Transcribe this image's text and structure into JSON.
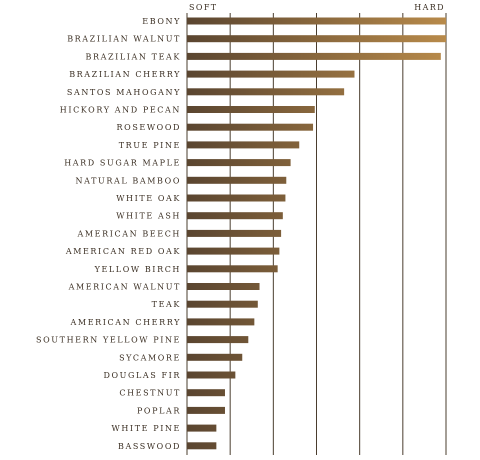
{
  "chart_data": {
    "type": "bar",
    "orientation": "horizontal",
    "title": "",
    "xlabel": "",
    "ylabel": "",
    "scale_labels": {
      "left": "SOFT",
      "right": "HARD"
    },
    "xlim": [
      0,
      3000
    ],
    "grid": true,
    "grid_values": [
      500,
      1000,
      1500,
      2000,
      2500
    ],
    "colors": {
      "bar_start": "#5a4530",
      "bar_end": "#b88a4a",
      "text": "#3a2e22",
      "grid": "#4a3d2e"
    },
    "categories": [
      "EBONY",
      "BRAZILIAN WALNUT",
      "BRAZILIAN TEAK",
      "BRAZILIAN CHERRY",
      "SANTOS MAHOGANY",
      "HICKORY AND PECAN",
      "ROSEWOOD",
      "TRUE PINE",
      "HARD SUGAR MAPLE",
      "NATURAL BAMBOO",
      "WHITE OAK",
      "WHITE ASH",
      "AMERICAN BEECH",
      "AMERICAN RED OAK",
      "YELLOW BIRCH",
      "AMERICAN WALNUT",
      "TEAK",
      "AMERICAN CHERRY",
      "SOUTHERN YELLOW PINE",
      "SYCAMORE",
      "DOUGLAS FIR",
      "CHESTNUT",
      "POPLAR",
      "WHITE PINE",
      "BASSWOOD"
    ],
    "values": [
      3000,
      3000,
      2940,
      1940,
      1820,
      1480,
      1460,
      1300,
      1200,
      1150,
      1140,
      1110,
      1090,
      1070,
      1050,
      840,
      820,
      780,
      710,
      640,
      560,
      440,
      440,
      340,
      340
    ]
  }
}
